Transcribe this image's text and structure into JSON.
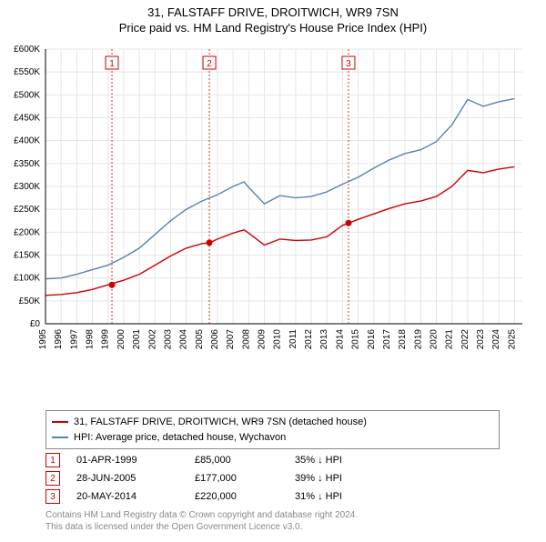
{
  "title_line1": "31, FALSTAFF DRIVE, DROITWICH, WR9 7SN",
  "title_line2": "Price paid vs. HM Land Registry's House Price Index (HPI)",
  "chart": {
    "type": "line",
    "plot_bg": "#ffffff",
    "grid_color": "#e5e5e5",
    "axis_color": "#000000",
    "tick_fontsize": 10,
    "title_fontsize": 13,
    "x": {
      "min": 1995,
      "max": 2025.5,
      "ticks": [
        1995,
        1996,
        1997,
        1998,
        1999,
        2000,
        2001,
        2002,
        2003,
        2004,
        2005,
        2006,
        2007,
        2008,
        2009,
        2010,
        2011,
        2012,
        2013,
        2014,
        2015,
        2016,
        2017,
        2018,
        2019,
        2020,
        2021,
        2022,
        2023,
        2024,
        2025
      ],
      "tick_labels": [
        "1995",
        "1996",
        "1997",
        "1998",
        "1999",
        "2000",
        "2001",
        "2002",
        "2003",
        "2004",
        "2005",
        "2006",
        "2007",
        "2008",
        "2009",
        "2010",
        "2011",
        "2012",
        "2013",
        "2014",
        "2015",
        "2016",
        "2017",
        "2018",
        "2019",
        "2020",
        "2021",
        "2022",
        "2023",
        "2024",
        "2025"
      ],
      "rotation": -90
    },
    "y": {
      "min": 0,
      "max": 600000,
      "ticks": [
        0,
        50000,
        100000,
        150000,
        200000,
        250000,
        300000,
        350000,
        400000,
        450000,
        500000,
        550000,
        600000
      ],
      "tick_labels": [
        "£0",
        "£50K",
        "£100K",
        "£150K",
        "£200K",
        "£250K",
        "£300K",
        "£350K",
        "£400K",
        "£450K",
        "£500K",
        "£550K",
        "£600K"
      ]
    },
    "series": [
      {
        "name": "property",
        "label": "31, FALSTAFF DRIVE, DROITWICH, WR9 7SN (detached house)",
        "color": "#cc0000",
        "line_width": 1.4,
        "x": [
          1995,
          1996,
          1997,
          1998,
          1999,
          2000,
          2001,
          2002,
          2003,
          2004,
          2005,
          2005.5,
          2006,
          2007,
          2007.7,
          2008,
          2009,
          2010,
          2011,
          2012,
          2013,
          2014,
          2014.4,
          2015,
          2016,
          2017,
          2018,
          2019,
          2020,
          2021,
          2022,
          2023,
          2024,
          2025
        ],
        "y": [
          62000,
          64000,
          68000,
          75000,
          85000,
          95000,
          108000,
          128000,
          148000,
          165000,
          175000,
          177000,
          185000,
          198000,
          205000,
          198000,
          172000,
          185000,
          182000,
          183000,
          190000,
          215000,
          220000,
          228000,
          240000,
          252000,
          262000,
          268000,
          278000,
          300000,
          335000,
          330000,
          338000,
          343000
        ]
      },
      {
        "name": "hpi",
        "label": "HPI: Average price, detached house, Wychavon",
        "color": "#5b7fb3",
        "line_width": 1.4,
        "x": [
          1995,
          1996,
          1997,
          1998,
          1999,
          2000,
          2001,
          2002,
          2003,
          2004,
          2005,
          2006,
          2007,
          2007.7,
          2008,
          2009,
          2010,
          2011,
          2012,
          2013,
          2014,
          2015,
          2016,
          2017,
          2018,
          2019,
          2020,
          2021,
          2022,
          2023,
          2024,
          2025
        ],
        "y": [
          98000,
          100000,
          108000,
          118000,
          128000,
          145000,
          165000,
          195000,
          225000,
          250000,
          268000,
          282000,
          300000,
          310000,
          298000,
          262000,
          280000,
          275000,
          278000,
          288000,
          305000,
          320000,
          340000,
          358000,
          372000,
          380000,
          398000,
          435000,
          490000,
          475000,
          485000,
          492000
        ]
      }
    ],
    "sale_markers": {
      "vline_color": "#cc0000",
      "vline_dash": "2,2",
      "box_border": "#cc0000",
      "box_text_color": "#cc0000",
      "dot_fill": "#cc0000",
      "dot_radius": 3.5,
      "items": [
        {
          "n": "1",
          "x": 1999.25,
          "y": 85000
        },
        {
          "n": "2",
          "x": 2005.48,
          "y": 177000
        },
        {
          "n": "3",
          "x": 2014.38,
          "y": 220000
        }
      ]
    }
  },
  "legend": {
    "border_color": "#888888",
    "fontsize": 11,
    "items": [
      {
        "color": "#cc0000",
        "label": "31, FALSTAFF DRIVE, DROITWICH, WR9 7SN (detached house)"
      },
      {
        "color": "#5b7fb3",
        "label": "HPI: Average price, detached house, Wychavon"
      }
    ]
  },
  "sales": [
    {
      "n": "1",
      "date": "01-APR-1999",
      "price": "£85,000",
      "delta": "35% ↓ HPI"
    },
    {
      "n": "2",
      "date": "28-JUN-2005",
      "price": "£177,000",
      "delta": "39% ↓ HPI"
    },
    {
      "n": "3",
      "date": "20-MAY-2014",
      "price": "£220,000",
      "delta": "31% ↓ HPI"
    }
  ],
  "footer": {
    "line1": "Contains HM Land Registry data © Crown copyright and database right 2024.",
    "line2": "This data is licensed under the Open Government Licence v3.0.",
    "color": "#888888",
    "fontsize": 10
  }
}
